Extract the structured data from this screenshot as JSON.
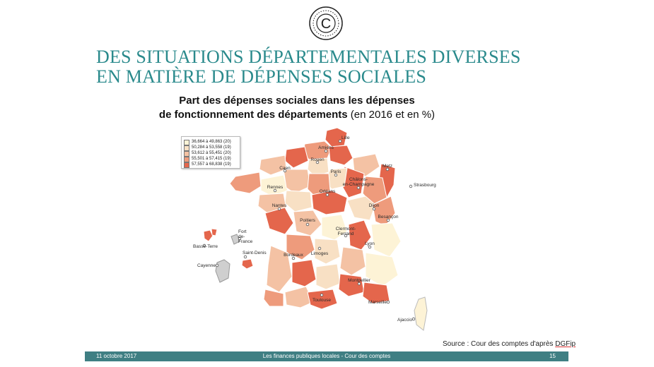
{
  "title_line1": "DES SITUATIONS DÉPARTEMENTALES DIVERSES",
  "title_line2": "EN MATIÈRE DE DÉPENSES SOCIALES",
  "chart_data": {
    "type": "choropleth map",
    "title_bold_line1": "Part des dépenses sociales dans les dépenses",
    "title_bold_line2": "de fonctionnement des départements",
    "title_suffix": " (en 2016 et en %)",
    "legend": [
      {
        "range": "36,664 à 49,863 (20)",
        "color": "#fdf3d6"
      },
      {
        "range": "50,284 à 53,558 (19)",
        "color": "#f8e0c4"
      },
      {
        "range": "53,612 à 55,451 (20)",
        "color": "#f4c2a4"
      },
      {
        "range": "55,501 à 57,415 (19)",
        "color": "#ee9b7c"
      },
      {
        "range": "57,557 à 68,838 (19)",
        "color": "#e4664c"
      }
    ],
    "legend_position": "top-left",
    "cities": [
      "Lille",
      "Amiens",
      "Rouen",
      "Caen",
      "Paris",
      "Metz",
      "Strasbourg",
      "Rennes",
      "Orléans",
      "Châlons-en-Champagne",
      "Nantes",
      "Dijon",
      "Besançon",
      "Poitiers",
      "Clermont-Ferrand",
      "Lyon",
      "Limoges",
      "Bordeaux",
      "Montpellier",
      "Toulouse",
      "Marseille",
      "Ajaccio"
    ],
    "overseas": [
      "Basse-Terre",
      "Fort de-France",
      "Saint-Denis",
      "Cayenne"
    ]
  },
  "source_prefix": "Source : Cour des comptes d'après ",
  "source_org": "DGFip",
  "footer": {
    "date": "11 octobre 2017",
    "center": "Les finances publiques locales - Cour des comptes",
    "page": "15"
  }
}
